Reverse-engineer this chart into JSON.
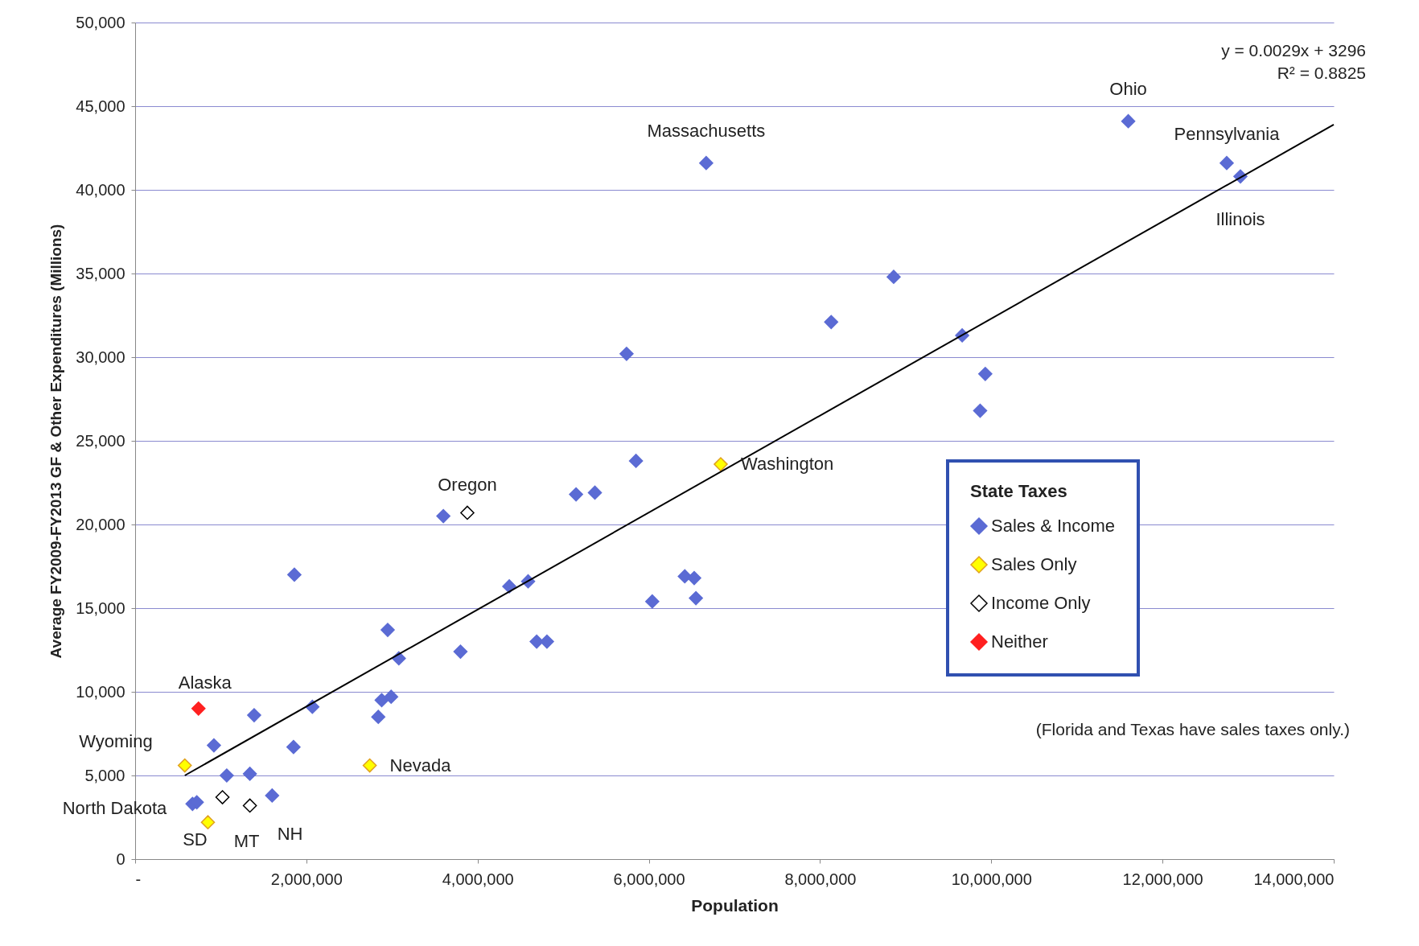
{
  "chart_data": {
    "type": "scatter",
    "xlabel": "Population",
    "ylabel": "Average FY2009-FY2013 GF & Other Expenditures (Millions)",
    "legend_title": "State Taxes",
    "legend": "right",
    "grid": "y",
    "marker": "diamond",
    "xlim": [
      0,
      14000000
    ],
    "xticks": [
      {
        "value": 0,
        "label": "-"
      },
      {
        "value": 2000000,
        "label": "2,000,000"
      },
      {
        "value": 4000000,
        "label": "4,000,000"
      },
      {
        "value": 6000000,
        "label": "6,000,000"
      },
      {
        "value": 8000000,
        "label": "8,000,000"
      },
      {
        "value": 10000000,
        "label": "10,000,000"
      },
      {
        "value": 12000000,
        "label": "12,000,000"
      },
      {
        "value": 14000000,
        "label": "14,000,000"
      }
    ],
    "ylim": [
      0,
      50000
    ],
    "yticks": [
      0,
      {
        "value": 5000,
        "label": "5,000"
      },
      {
        "value": 10000,
        "label": "10,000"
      },
      {
        "value": 15000,
        "label": "15,000"
      },
      {
        "value": 20000,
        "label": "20,000"
      },
      {
        "value": 25000,
        "label": "25,000"
      },
      {
        "value": 30000,
        "label": "30,000"
      },
      {
        "value": 35000,
        "label": "35,000"
      },
      {
        "value": 40000,
        "label": "40,000"
      },
      {
        "value": 45000,
        "label": "45,000"
      },
      {
        "value": 50000,
        "label": "50,000"
      }
    ],
    "series": [
      {
        "name": "Sales & Income",
        "color": "#5b6bd4",
        "x": [
          920000,
          1070000,
          1390000,
          1340000,
          1600000,
          1860000,
          1850000,
          2070000,
          670000,
          720000,
          2950000,
          3080000,
          2880000,
          2990000,
          2840000,
          3600000,
          3800000,
          4370000,
          4590000,
          4690000,
          4810000,
          5150000,
          5370000,
          5740000,
          5850000,
          6040000,
          6420000,
          6530000,
          6550000,
          6670000,
          8130000,
          8860000,
          9660000,
          9930000,
          9870000,
          11600000,
          12750000,
          12910000
        ],
        "values": [
          6800,
          5000,
          8600,
          5100,
          3800,
          17000,
          6700,
          9100,
          3300,
          3400,
          13700,
          12000,
          9500,
          9700,
          8500,
          20500,
          12400,
          16300,
          16600,
          13000,
          13000,
          21800,
          21900,
          30200,
          23800,
          15400,
          16900,
          16800,
          15600,
          41600,
          32100,
          34800,
          31300,
          29000,
          26800,
          44100,
          41600,
          40800
        ]
      },
      {
        "name": "Sales Only",
        "color": "#ffff00",
        "x": [
          580000,
          850000,
          2740000,
          6840000
        ],
        "values": [
          5600,
          2200,
          5600,
          23600
        ]
      },
      {
        "name": "Income Only",
        "color": "#ffffff",
        "x": [
          3880000,
          1020000,
          1340000
        ],
        "values": [
          20700,
          3700,
          3200
        ]
      },
      {
        "name": "Neither",
        "color": "#ff2020",
        "x": [
          740000
        ],
        "values": [
          9000
        ]
      },
      {
        "type": "line",
        "marker": "none",
        "color": "#000000",
        "x": [
          580000,
          14000000
        ],
        "values": [
          5000,
          43900
        ]
      }
    ],
    "annotations": [
      {
        "text": "Massachusetts",
        "x": 6670000,
        "y": 41600
      },
      {
        "text": "Ohio",
        "x": 11600000,
        "y": 44100
      },
      {
        "text": "Pennsylvania",
        "x": 12750000,
        "y": 41600
      },
      {
        "text": "Illinois",
        "x": 12910000,
        "y": 40800
      },
      {
        "text": "Washington",
        "x": 6840000,
        "y": 23600
      },
      {
        "text": "Oregon",
        "x": 3880000,
        "y": 20700
      },
      {
        "text": "Nevada",
        "x": 2740000,
        "y": 5600
      },
      {
        "text": "Alaska",
        "x": 740000,
        "y": 9000
      },
      {
        "text": "Wyoming",
        "x": 580000,
        "y": 5600
      },
      {
        "text": "North Dakota",
        "x": 670000,
        "y": 3300
      },
      {
        "text": "SD",
        "x": 850000,
        "y": 2200
      },
      {
        "text": "MT",
        "x": 1020000,
        "y": 3700
      },
      {
        "text": "NH",
        "x": 1340000,
        "y": 3200
      },
      "y = 0.0029x + 3296",
      "R² = 0.8825",
      "(Florida and Texas have sales taxes only.)"
    ]
  }
}
